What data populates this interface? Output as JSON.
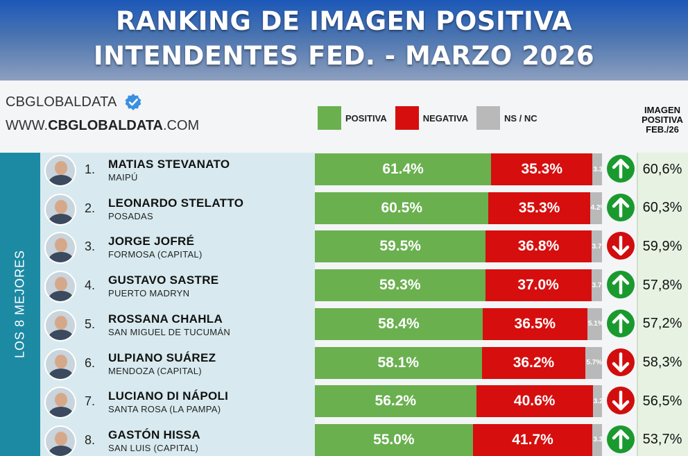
{
  "header": {
    "title_line1": "RANKING DE IMAGEN POSITIVA",
    "title_line2": "INTENDENTES FED. - MARZO 2026"
  },
  "brand": {
    "name": "CBGLOBALDATA",
    "url_prefix": "WWW.",
    "url_bold": "CBGLOBALDATA",
    "url_suffix": ".COM"
  },
  "legend": {
    "positive": "POSITIVA",
    "negative": "NEGATIVA",
    "nsnc": "NS / NC"
  },
  "prev_column_header": {
    "line1": "IMAGEN",
    "line2": "POSITIVA",
    "line3": "FEB./26"
  },
  "sidebar_label": "LOS 8 MEJORES",
  "colors": {
    "positive": "#6ab04f",
    "negative": "#d60e0e",
    "nsnc": "#b9b9b9",
    "trend_up": "#1a9a2e",
    "trend_down": "#d10d0d",
    "sidebar": "#1d8aa4"
  },
  "chart_data": {
    "type": "bar",
    "stacked": true,
    "orientation": "horizontal",
    "title": "RANKING DE IMAGEN POSITIVA INTENDENTES FED. - MARZO 2026",
    "categories": [
      "MATIAS STEVANATO",
      "LEONARDO STELATTO",
      "JORGE JOFRÉ",
      "GUSTAVO SASTRE",
      "ROSSANA CHAHLA",
      "ULPIANO SUÁREZ",
      "LUCIANO DI NÁPOLI",
      "GASTÓN HISSA"
    ],
    "series": [
      {
        "name": "POSITIVA",
        "values": [
          61.4,
          60.5,
          59.5,
          59.3,
          58.4,
          58.1,
          56.2,
          55.0
        ]
      },
      {
        "name": "NEGATIVA",
        "values": [
          35.3,
          35.3,
          36.8,
          37.0,
          36.5,
          36.2,
          40.6,
          41.7
        ]
      },
      {
        "name": "NS / NC",
        "values": [
          3.3,
          4.2,
          3.7,
          3.7,
          5.1,
          5.7,
          3.2,
          3.3
        ]
      }
    ],
    "xlim": [
      0,
      100
    ],
    "rows": [
      {
        "rank": "1.",
        "name": "MATIAS STEVANATO",
        "city": "MAIPÚ",
        "pos": "61.4%",
        "neg": "35.3%",
        "ns": "3.3%",
        "trend": "up",
        "prev": "60,6%"
      },
      {
        "rank": "2.",
        "name": "LEONARDO STELATTO",
        "city": "POSADAS",
        "pos": "60.5%",
        "neg": "35.3%",
        "ns": "4.2%",
        "trend": "up",
        "prev": "60,3%"
      },
      {
        "rank": "3.",
        "name": "JORGE JOFRÉ",
        "city": "FORMOSA (CAPITAL)",
        "pos": "59.5%",
        "neg": "36.8%",
        "ns": "3.7%",
        "trend": "down",
        "prev": "59,9%"
      },
      {
        "rank": "4.",
        "name": "GUSTAVO SASTRE",
        "city": "PUERTO MADRYN",
        "pos": "59.3%",
        "neg": "37.0%",
        "ns": "3.7%",
        "trend": "up",
        "prev": "57,8%"
      },
      {
        "rank": "5.",
        "name": "ROSSANA CHAHLA",
        "city": "SAN MIGUEL DE TUCUMÁN",
        "pos": "58.4%",
        "neg": "36.5%",
        "ns": "5.1%",
        "trend": "up",
        "prev": "57,2%"
      },
      {
        "rank": "6.",
        "name": "ULPIANO SUÁREZ",
        "city": "MENDOZA (CAPITAL)",
        "pos": "58.1%",
        "neg": "36.2%",
        "ns": "5.7%",
        "trend": "down",
        "prev": "58,3%"
      },
      {
        "rank": "7.",
        "name": "LUCIANO DI NÁPOLI",
        "city": "SANTA ROSA (LA PAMPA)",
        "pos": "56.2%",
        "neg": "40.6%",
        "ns": "3.2%",
        "trend": "down",
        "prev": "56,5%"
      },
      {
        "rank": "8.",
        "name": "GASTÓN HISSA",
        "city": "SAN LUIS (CAPITAL)",
        "pos": "55.0%",
        "neg": "41.7%",
        "ns": "3.3%",
        "trend": "up",
        "prev": "53,7%"
      }
    ]
  }
}
